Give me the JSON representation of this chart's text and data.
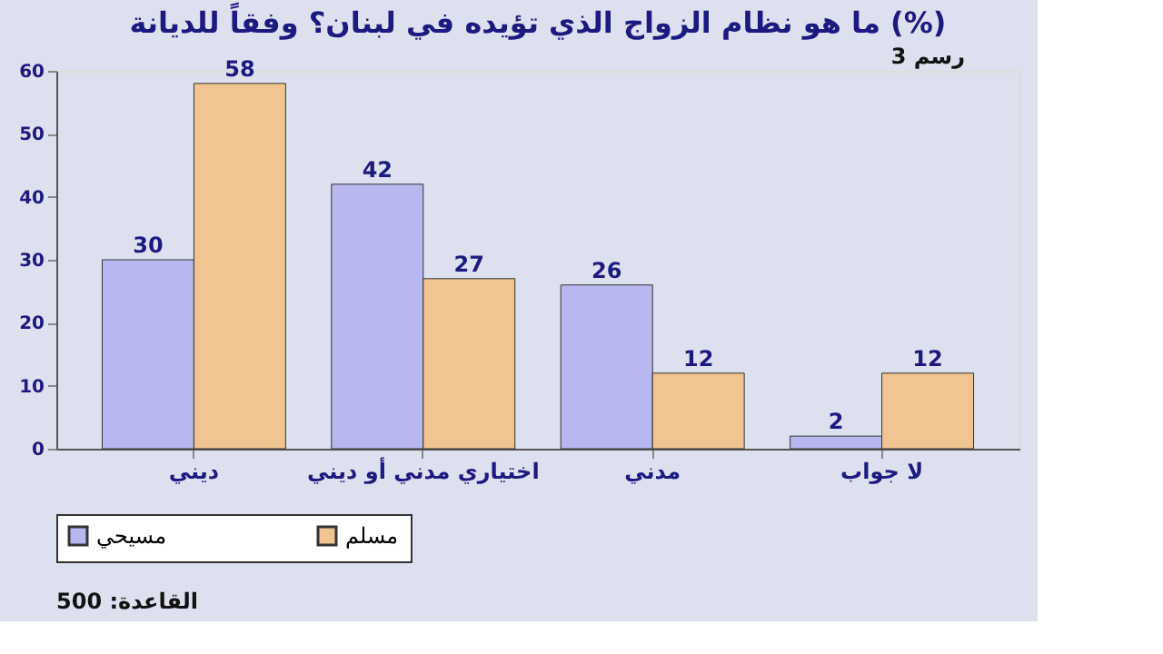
{
  "chart_data": {
    "type": "bar",
    "title": "ما هو نظام الزواج الذي تؤيده في لبنان؟ وفقاً للديانة (%)",
    "categories": [
      "ديني",
      "اختياري مدني أو ديني",
      "مدني",
      "لا جواب"
    ],
    "series": [
      {
        "name": "مسيحي",
        "color": "#b8b8f0",
        "values": [
          30,
          42,
          26,
          2
        ]
      },
      {
        "name": "مسلم",
        "color": "#f0c490",
        "values": [
          58,
          27,
          12,
          12
        ]
      }
    ],
    "ylim": [
      0,
      60
    ],
    "yticks": [
      0,
      10,
      20,
      30,
      40,
      50,
      60
    ],
    "grid": false,
    "legend": "bottom",
    "data_labels": true,
    "annotations": [
      "رسم 3",
      "القاعدة: 500"
    ]
  }
}
